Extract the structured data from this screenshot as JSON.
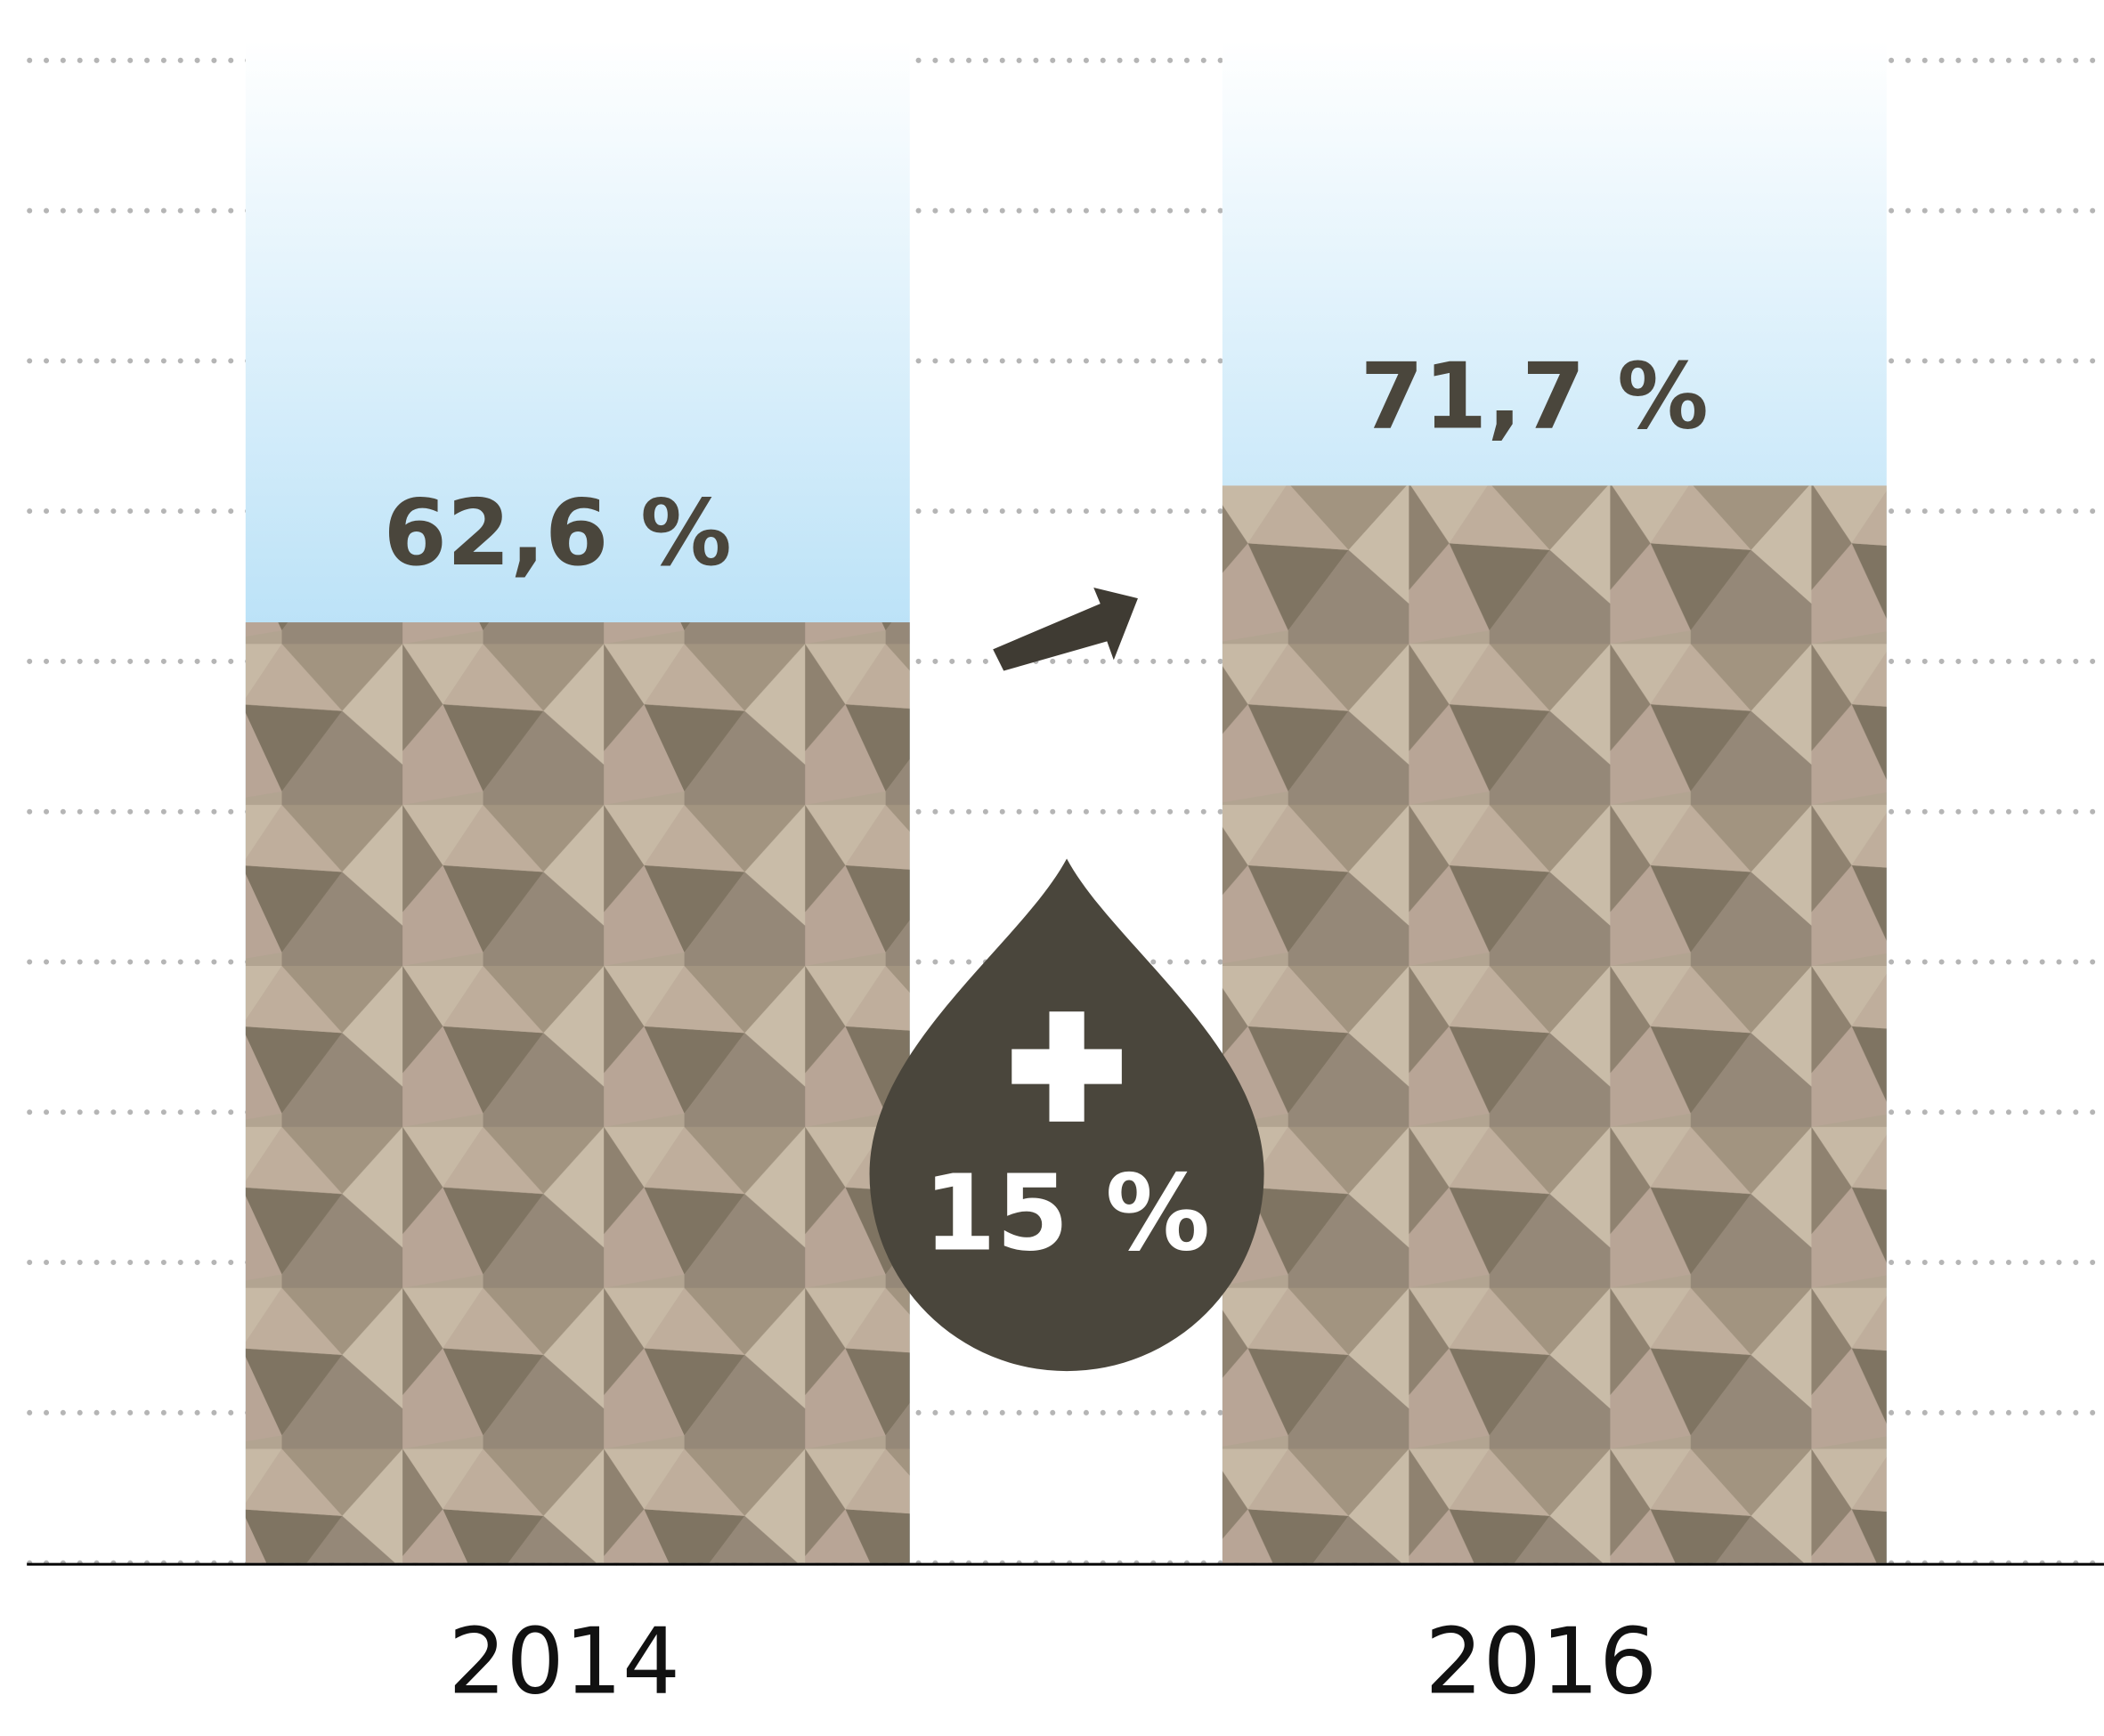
{
  "chart_data": {
    "type": "bar",
    "categories": [
      "2014",
      "2016"
    ],
    "values": [
      62.6,
      71.7
    ],
    "value_labels": [
      "62,6 %",
      "71,7 %"
    ],
    "annotation": "15 %",
    "ylim": [
      0,
      100
    ],
    "yticks": [
      0,
      10,
      20,
      30,
      40,
      50,
      60,
      70,
      80,
      90,
      100
    ],
    "grid": true,
    "color": "#a99a88"
  }
}
